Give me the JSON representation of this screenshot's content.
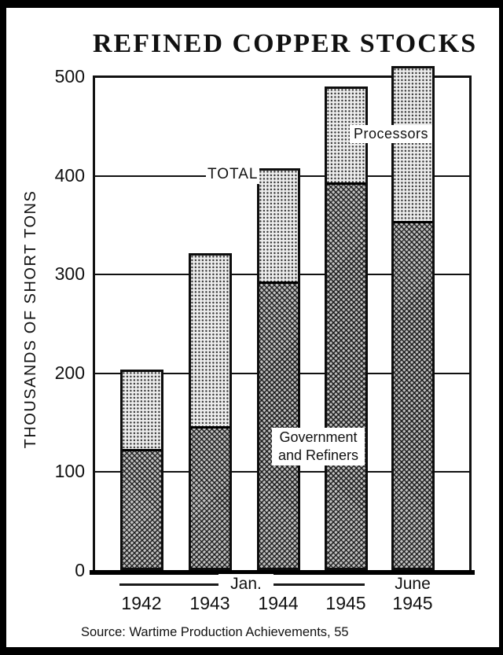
{
  "title": "REFINED COPPER STOCKS",
  "y_axis": {
    "label": "THOUSANDS OF SHORT TONS",
    "ticks": [
      "0",
      "100",
      "200",
      "300",
      "400",
      "500"
    ]
  },
  "x_axis": {
    "group_label": "Jan.",
    "years": [
      "1942",
      "1943",
      "1944",
      "1945"
    ],
    "june_label": "June",
    "june_year": "1945"
  },
  "annotations": {
    "total_label": "TOTAL",
    "processors_label": "Processors",
    "government_line1": "Government",
    "government_line2": "and Refiners"
  },
  "source": "Source: Wartime Production Achievements, 55",
  "colors": {
    "ink": "#111111",
    "paper": "#ffffff",
    "government_fill": "#c2c2c2",
    "processors_fill": "#ececec"
  },
  "chart_data": {
    "type": "bar",
    "stacked": true,
    "title": "REFINED COPPER STOCKS",
    "ylabel": "THOUSANDS OF SHORT TONS",
    "xlabel": "",
    "ylim": [
      0,
      500
    ],
    "yticks": [
      0,
      100,
      200,
      300,
      400,
      500
    ],
    "grid": true,
    "legend_position": "inline-annotations",
    "categories": [
      "Jan. 1942",
      "Jan. 1943",
      "Jan. 1944",
      "Jan. 1945",
      "June 1945"
    ],
    "series": [
      {
        "name": "Government and Refiners",
        "values": [
          120,
          143,
          290,
          390,
          351
        ]
      },
      {
        "name": "Processors",
        "values": [
          83,
          178,
          117,
          100,
          159
        ]
      }
    ],
    "totals": [
      203,
      321,
      407,
      490,
      510
    ],
    "source": "Source: Wartime Production Achievements, 55"
  }
}
